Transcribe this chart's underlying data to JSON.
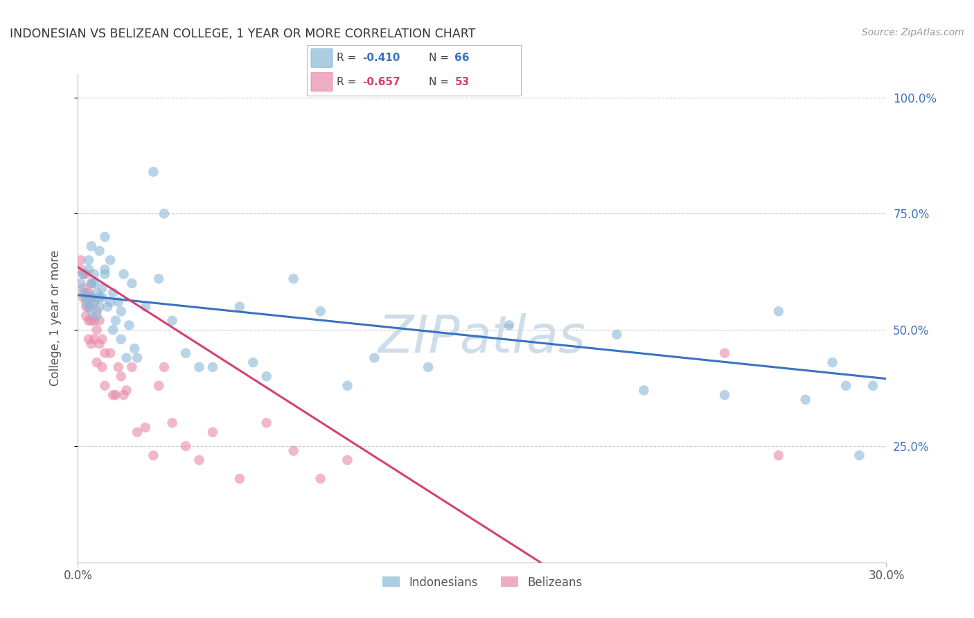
{
  "title": "INDONESIAN VS BELIZEAN COLLEGE, 1 YEAR OR MORE CORRELATION CHART",
  "source": "Source: ZipAtlas.com",
  "ylabel_label": "College, 1 year or more",
  "indonesian_color": "#8bb8d8",
  "belizean_color": "#e88aaa",
  "regression_blue": "#3a72c0",
  "regression_pink": "#d44075",
  "watermark": "ZIPatlas",
  "watermark_color": "#c8dae8",
  "xmin": 0.0,
  "xmax": 0.3,
  "ymin": 0.0,
  "ymax": 1.05,
  "blue_intercept": 0.575,
  "blue_slope": -0.6,
  "pink_intercept": 0.635,
  "pink_slope": -3.7,
  "blue_x": [
    0.001,
    0.002,
    0.002,
    0.003,
    0.003,
    0.004,
    0.004,
    0.004,
    0.005,
    0.005,
    0.005,
    0.005,
    0.006,
    0.006,
    0.006,
    0.007,
    0.007,
    0.008,
    0.008,
    0.008,
    0.009,
    0.009,
    0.01,
    0.01,
    0.01,
    0.011,
    0.012,
    0.012,
    0.013,
    0.013,
    0.014,
    0.015,
    0.016,
    0.016,
    0.017,
    0.018,
    0.019,
    0.02,
    0.021,
    0.022,
    0.025,
    0.028,
    0.03,
    0.032,
    0.035,
    0.04,
    0.045,
    0.05,
    0.06,
    0.065,
    0.07,
    0.08,
    0.09,
    0.1,
    0.11,
    0.13,
    0.16,
    0.2,
    0.21,
    0.24,
    0.26,
    0.27,
    0.28,
    0.285,
    0.29,
    0.295
  ],
  "blue_y": [
    0.6,
    0.58,
    0.62,
    0.57,
    0.56,
    0.65,
    0.63,
    0.55,
    0.68,
    0.57,
    0.6,
    0.54,
    0.56,
    0.6,
    0.62,
    0.58,
    0.53,
    0.57,
    0.55,
    0.67,
    0.59,
    0.57,
    0.7,
    0.63,
    0.62,
    0.55,
    0.65,
    0.56,
    0.5,
    0.58,
    0.52,
    0.56,
    0.54,
    0.48,
    0.62,
    0.44,
    0.51,
    0.6,
    0.46,
    0.44,
    0.55,
    0.84,
    0.61,
    0.75,
    0.52,
    0.45,
    0.42,
    0.42,
    0.55,
    0.43,
    0.4,
    0.61,
    0.54,
    0.38,
    0.44,
    0.42,
    0.51,
    0.49,
    0.37,
    0.36,
    0.54,
    0.35,
    0.43,
    0.38,
    0.23,
    0.38
  ],
  "pink_x": [
    0.001,
    0.001,
    0.002,
    0.002,
    0.002,
    0.003,
    0.003,
    0.003,
    0.003,
    0.004,
    0.004,
    0.004,
    0.004,
    0.005,
    0.005,
    0.005,
    0.005,
    0.006,
    0.006,
    0.006,
    0.007,
    0.007,
    0.007,
    0.008,
    0.008,
    0.009,
    0.009,
    0.01,
    0.01,
    0.012,
    0.013,
    0.014,
    0.015,
    0.016,
    0.017,
    0.018,
    0.02,
    0.022,
    0.025,
    0.028,
    0.03,
    0.032,
    0.035,
    0.04,
    0.045,
    0.05,
    0.06,
    0.07,
    0.08,
    0.09,
    0.1,
    0.24,
    0.26
  ],
  "pink_y": [
    0.65,
    0.63,
    0.62,
    0.59,
    0.57,
    0.62,
    0.58,
    0.55,
    0.53,
    0.58,
    0.55,
    0.52,
    0.48,
    0.6,
    0.57,
    0.52,
    0.47,
    0.56,
    0.52,
    0.48,
    0.54,
    0.5,
    0.43,
    0.52,
    0.47,
    0.48,
    0.42,
    0.45,
    0.38,
    0.45,
    0.36,
    0.36,
    0.42,
    0.4,
    0.36,
    0.37,
    0.42,
    0.28,
    0.29,
    0.23,
    0.38,
    0.42,
    0.3,
    0.25,
    0.22,
    0.28,
    0.18,
    0.3,
    0.24,
    0.18,
    0.22,
    0.45,
    0.23
  ]
}
